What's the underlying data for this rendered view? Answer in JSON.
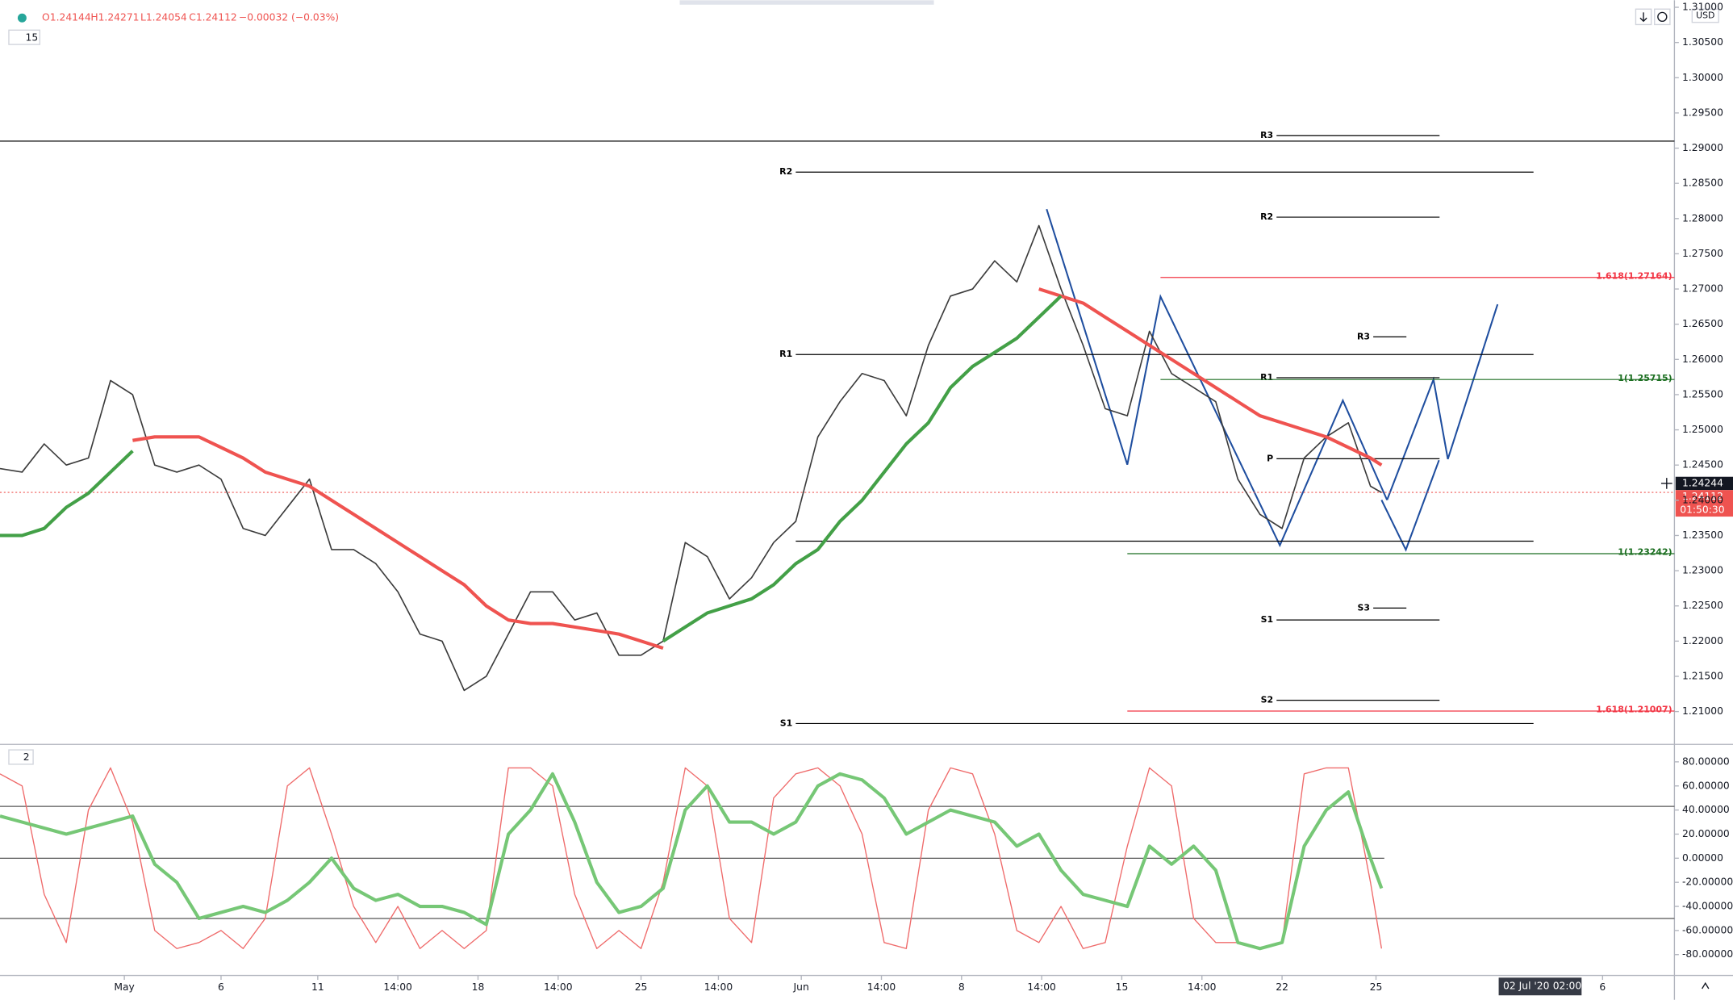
{
  "header": {
    "open": "O1.24144",
    "high": "H1.24271",
    "low": "L1.24054",
    "close": "C1.24112",
    "change": "−0.00032 (−0.03%)",
    "interval": "15",
    "currency": "USD",
    "pane_label": "2",
    "crosshair_price": "1.24244",
    "last_price": "1.24112",
    "countdown": "01:50:30",
    "date_marker": "02 Jul '20",
    "time_marker": "02:00"
  },
  "chart_data": [
    {
      "type": "line",
      "x": [
        0,
        8,
        16,
        24,
        32,
        40,
        48,
        56,
        64,
        72,
        80,
        88,
        96,
        104,
        112,
        120,
        128,
        136,
        144,
        152,
        160,
        168,
        176,
        184,
        192,
        200,
        208,
        216,
        224,
        232,
        240,
        248,
        256,
        264,
        272,
        280,
        288,
        296,
        304,
        312,
        320,
        328,
        336,
        344,
        352,
        360,
        368,
        376,
        384,
        392,
        400,
        408,
        416,
        424,
        432,
        440,
        448,
        456,
        464,
        472,
        480,
        488,
        496,
        500
      ],
      "series": [
        {
          "color": "#3c3c3c",
          "values": [
            1.2445,
            1.244,
            1.248,
            1.245,
            1.246,
            1.257,
            1.255,
            1.245,
            1.244,
            1.245,
            1.243,
            1.236,
            1.235,
            1.239,
            1.243,
            1.233,
            1.233,
            1.231,
            1.227,
            1.221,
            1.22,
            1.213,
            1.215,
            1.221,
            1.227,
            1.227,
            1.223,
            1.224,
            1.218,
            1.218,
            1.22,
            1.234,
            1.232,
            1.226,
            1.229,
            1.234,
            1.237,
            1.249,
            1.254,
            1.258,
            1.257,
            1.252,
            1.262,
            1.269,
            1.27,
            1.274,
            1.271,
            1.279,
            1.27,
            1.262,
            1.253,
            1.252,
            1.264,
            1.258,
            1.256,
            1.254,
            1.243,
            1.238,
            1.236,
            1.246,
            1.249,
            1.251,
            1.242,
            1.2411
          ]
        },
        {
          "color": "#ef5350",
          "values": [
            null,
            null,
            null,
            null,
            null,
            null,
            1.2485,
            1.249,
            1.249,
            1.249,
            1.2475,
            1.246,
            1.244,
            1.243,
            1.242,
            1.24,
            1.238,
            1.236,
            1.234,
            1.232,
            1.23,
            1.228,
            1.225,
            1.223,
            1.2225,
            1.2225,
            1.222,
            1.2215,
            1.221,
            1.22,
            1.219,
            null,
            null,
            null,
            null,
            null,
            null,
            null,
            null,
            null,
            null,
            null,
            null,
            null,
            null,
            null,
            null,
            1.27,
            1.269,
            1.268,
            1.266,
            1.264,
            1.262,
            1.26,
            1.258,
            1.256,
            1.254,
            1.252,
            1.251,
            1.25,
            1.249,
            1.2475,
            1.246,
            1.245
          ]
        },
        {
          "color": "#43a047",
          "values": [
            1.235,
            1.235,
            1.236,
            1.239,
            1.241,
            1.244,
            1.247,
            null,
            null,
            null,
            null,
            null,
            null,
            null,
            null,
            null,
            null,
            null,
            null,
            null,
            null,
            null,
            null,
            null,
            null,
            null,
            null,
            null,
            null,
            null,
            1.22,
            1.222,
            1.224,
            1.225,
            1.226,
            1.228,
            1.231,
            1.233,
            1.237,
            1.24,
            1.244,
            1.248,
            1.251,
            1.256,
            1.259,
            1.261,
            1.263,
            1.266,
            1.269,
            null,
            null,
            null,
            null,
            null,
            null,
            null,
            null,
            null,
            null,
            null,
            null,
            null,
            null,
            null
          ]
        }
      ],
      "xlim": [
        0,
        606
      ],
      "ylim": [
        1.2055,
        1.311
      ],
      "xticks": [
        {
          "value": 45,
          "label": "May"
        },
        {
          "value": 80,
          "label": "6"
        },
        {
          "value": 115,
          "label": "11"
        },
        {
          "value": 144,
          "label": "14:00"
        },
        {
          "value": 173,
          "label": "18"
        },
        {
          "value": 202,
          "label": "14:00"
        },
        {
          "value": 232,
          "label": "25"
        },
        {
          "value": 260,
          "label": "14:00"
        },
        {
          "value": 290,
          "label": "Jun"
        },
        {
          "value": 319,
          "label": "14:00"
        },
        {
          "value": 348,
          "label": "8"
        },
        {
          "value": 377,
          "label": "14:00"
        },
        {
          "value": 406,
          "label": "15"
        },
        {
          "value": 435,
          "label": "14:00"
        },
        {
          "value": 464,
          "label": "22"
        },
        {
          "value": 498,
          "label": "25"
        },
        {
          "value": 580,
          "label": "6"
        }
      ],
      "yticks": [
        {
          "value": 1.21,
          "label": "1.21000"
        },
        {
          "value": 1.215,
          "label": "1.21500"
        },
        {
          "value": 1.22,
          "label": "1.22000"
        },
        {
          "value": 1.225,
          "label": "1.22500"
        },
        {
          "value": 1.23,
          "label": "1.23000"
        },
        {
          "value": 1.235,
          "label": "1.23500"
        },
        {
          "value": 1.24,
          "label": "1.24000"
        },
        {
          "value": 1.245,
          "label": "1.24500"
        },
        {
          "value": 1.25,
          "label": "1.25000"
        },
        {
          "value": 1.255,
          "label": "1.25500"
        },
        {
          "value": 1.26,
          "label": "1.26000"
        },
        {
          "value": 1.265,
          "label": "1.26500"
        },
        {
          "value": 1.27,
          "label": "1.27000"
        },
        {
          "value": 1.275,
          "label": "1.27500"
        },
        {
          "value": 1.28,
          "label": "1.28000"
        },
        {
          "value": 1.285,
          "label": "1.28500"
        },
        {
          "value": 1.29,
          "label": "1.29000"
        },
        {
          "value": 1.295,
          "label": "1.29500"
        },
        {
          "value": 1.3,
          "label": "1.30000"
        },
        {
          "value": 1.305,
          "label": "1.30500"
        },
        {
          "value": 1.31,
          "label": "1.31000"
        }
      ],
      "levels": [
        {
          "value": 1.291,
          "x": [
            0,
            606
          ],
          "color": "#000000"
        },
        {
          "label": "R3",
          "value": 1.2918,
          "x": [
            462,
            521
          ],
          "color": "#000000"
        },
        {
          "label": "R2",
          "value": 1.2866,
          "x": [
            288,
            555
          ],
          "color": "#000000"
        },
        {
          "label": "R2",
          "value": 1.2802,
          "x": [
            462,
            521
          ],
          "color": "#000000"
        },
        {
          "label": "1.618(1.27164)",
          "value": 1.27164,
          "x": [
            420,
            606
          ],
          "color": "#f23645"
        },
        {
          "label": "R3",
          "value": 1.2632,
          "x": [
            497,
            509
          ],
          "color": "#000000"
        },
        {
          "label": "R1",
          "value": 1.2607,
          "x": [
            288,
            555
          ],
          "color": "#000000"
        },
        {
          "label": "R1",
          "value": 1.2574,
          "x": [
            462,
            521
          ],
          "color": "#000000"
        },
        {
          "label": "1(1.25715)",
          "value": 1.25715,
          "x": [
            420,
            606
          ],
          "color": "#1b6e20"
        },
        {
          "label": "P",
          "value": 1.2459,
          "x": [
            462,
            521
          ],
          "color": "#000000"
        },
        {
          "value": 1.2342,
          "x": [
            288,
            555
          ],
          "color": "#000000"
        },
        {
          "label": "1(1.23242)",
          "value": 1.23242,
          "x": [
            408,
            606
          ],
          "color": "#1b6e20"
        },
        {
          "label": "S3",
          "value": 1.2247,
          "x": [
            497,
            509
          ],
          "color": "#000000"
        },
        {
          "label": "S1",
          "value": 1.223,
          "x": [
            462,
            521
          ],
          "color": "#000000"
        },
        {
          "label": "S2",
          "value": 1.2116,
          "x": [
            462,
            521
          ],
          "color": "#000000"
        },
        {
          "label": "1.618(1.21007)",
          "value": 1.21007,
          "x": [
            408,
            606
          ],
          "color": "#f23645"
        },
        {
          "label": "S1",
          "value": 1.2083,
          "x": [
            288,
            555
          ],
          "color": "#000000"
        },
        {
          "value": 1.24112,
          "x": [
            0,
            606
          ],
          "color": "#ef5350",
          "dashed": true
        }
      ]
    },
    {
      "type": "line",
      "x": [
        0,
        8,
        16,
        24,
        32,
        40,
        48,
        56,
        64,
        72,
        80,
        88,
        96,
        104,
        112,
        120,
        128,
        136,
        144,
        152,
        160,
        168,
        176,
        184,
        192,
        200,
        208,
        216,
        224,
        232,
        240,
        248,
        256,
        264,
        272,
        280,
        288,
        296,
        304,
        312,
        320,
        328,
        336,
        344,
        352,
        360,
        368,
        376,
        384,
        392,
        400,
        408,
        416,
        424,
        432,
        440,
        448,
        456,
        464,
        472,
        480,
        488,
        496,
        500
      ],
      "series": [
        {
          "color": "#ef6b6b",
          "width": 1,
          "values": [
            70,
            60,
            -30,
            -70,
            40,
            75,
            30,
            -60,
            -75,
            -70,
            -60,
            -75,
            -50,
            60,
            75,
            20,
            -40,
            -70,
            -40,
            -75,
            -60,
            -75,
            -60,
            75,
            75,
            60,
            -30,
            -75,
            -60,
            -75,
            -20,
            75,
            60,
            -50,
            -70,
            50,
            70,
            75,
            60,
            20,
            -70,
            -75,
            40,
            75,
            70,
            20,
            -60,
            -70,
            -40,
            -75,
            -70,
            10,
            75,
            60,
            -50,
            -70,
            -70,
            -75,
            -70,
            70,
            75,
            75,
            -20,
            -75
          ]
        },
        {
          "color": "#76c776",
          "width": 3,
          "values": [
            35,
            30,
            25,
            20,
            25,
            30,
            35,
            -5,
            -20,
            -50,
            -45,
            -40,
            -45,
            -35,
            -20,
            0,
            -25,
            -35,
            -30,
            -40,
            -40,
            -45,
            -55,
            20,
            40,
            70,
            30,
            -20,
            -45,
            -40,
            -25,
            40,
            60,
            30,
            30,
            20,
            30,
            60,
            70,
            65,
            50,
            20,
            30,
            40,
            35,
            30,
            10,
            20,
            -10,
            -30,
            -35,
            -40,
            10,
            -5,
            10,
            -10,
            -70,
            -75,
            -70,
            10,
            40,
            55,
            0,
            -25
          ]
        }
      ],
      "xlim": [
        0,
        606
      ],
      "ylim": [
        -97.3,
        93.6
      ],
      "yticks": [
        {
          "value": 80,
          "label": "80.00000"
        },
        {
          "value": 60,
          "label": "60.00000"
        },
        {
          "value": 40,
          "label": "40.00000"
        },
        {
          "value": 20,
          "label": "20.00000"
        },
        {
          "value": 0,
          "label": "0.00000"
        },
        {
          "value": -20,
          "label": "-20.00000"
        },
        {
          "value": -40,
          "label": "-40.00000"
        },
        {
          "value": -60,
          "label": "-60.00000"
        },
        {
          "value": -80,
          "label": "-80.00000"
        }
      ],
      "levels": [
        {
          "value": 43,
          "x": [
            0,
            606
          ],
          "color": "#555555"
        },
        {
          "value": 0,
          "x": [
            0,
            501
          ],
          "color": "#555555"
        },
        {
          "value": -50,
          "x": [
            0,
            606
          ],
          "color": "#555555"
        }
      ]
    }
  ]
}
